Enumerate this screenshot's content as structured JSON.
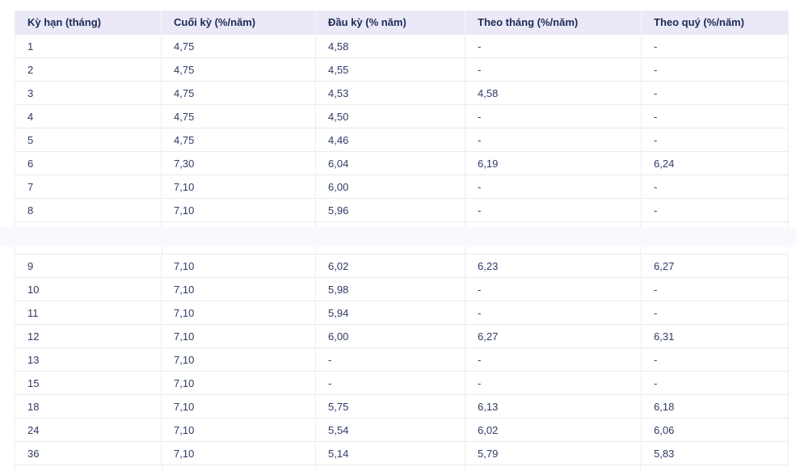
{
  "colors": {
    "header_bg": "#ebe9f7",
    "header_text": "#1c2a58",
    "cell_text": "#2e3a66",
    "row_border": "#e9e9f0",
    "col_divider": "#ededf4",
    "gap_bg": "#f8f9fc",
    "page_bg": "#ffffff"
  },
  "table": {
    "columns": [
      "Kỳ hạn (tháng)",
      "Cuối kỳ (%/năm)",
      "Đầu kỳ (% năm)",
      "Theo tháng (%/năm)",
      "Theo quý (%/năm)"
    ],
    "rows_top": [
      [
        "1",
        "4,75",
        "4,58",
        "-",
        "-"
      ],
      [
        "2",
        "4,75",
        "4,55",
        "-",
        "-"
      ],
      [
        "3",
        "4,75",
        "4,53",
        "4,58",
        "-"
      ],
      [
        "4",
        "4,75",
        "4,50",
        "-",
        "-"
      ],
      [
        "5",
        "4,75",
        "4,46",
        "-",
        "-"
      ],
      [
        "6",
        "7,30",
        "6,04",
        "6,19",
        "6,24"
      ],
      [
        "7",
        "7,10",
        "6,00",
        "-",
        "-"
      ],
      [
        "8",
        "7,10",
        "5,96",
        "-",
        "-"
      ]
    ],
    "rows_bottom": [
      [
        "9",
        "7,10",
        "6,02",
        "6,23",
        "6,27"
      ],
      [
        "10",
        "7,10",
        "5,98",
        "-",
        "-"
      ],
      [
        "11",
        "7,10",
        "5,94",
        "-",
        "-"
      ],
      [
        "12",
        "7,10",
        "6,00",
        "6,27",
        "6,31"
      ],
      [
        "13",
        "7,10",
        "-",
        "-",
        "-"
      ],
      [
        "15",
        "7,10",
        "-",
        "-",
        "-"
      ],
      [
        "18",
        "7,10",
        "5,75",
        "6,13",
        "6,18"
      ],
      [
        "24",
        "7,10",
        "5,54",
        "6,02",
        "6,06"
      ],
      [
        "36",
        "7,10",
        "5,14",
        "5,79",
        "5,83"
      ]
    ]
  }
}
